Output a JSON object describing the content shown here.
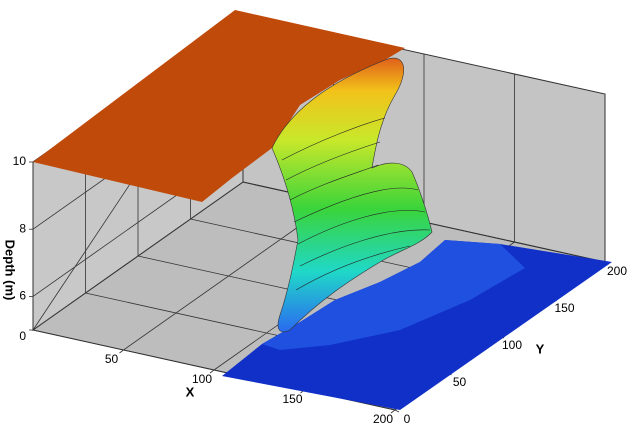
{
  "chart_data": {
    "type": "surface3d",
    "xlabel": "X",
    "ylabel": "Y",
    "zlabel": "Depth (m)",
    "xlim": [
      0,
      200
    ],
    "ylim": [
      0,
      200
    ],
    "zlim": [
      5,
      10
    ],
    "xticks": [
      50,
      100,
      150,
      200
    ],
    "yticks": [
      0,
      50,
      100,
      150,
      200
    ],
    "zticks": [
      0,
      6,
      8,
      10
    ],
    "grid": true
  }
}
